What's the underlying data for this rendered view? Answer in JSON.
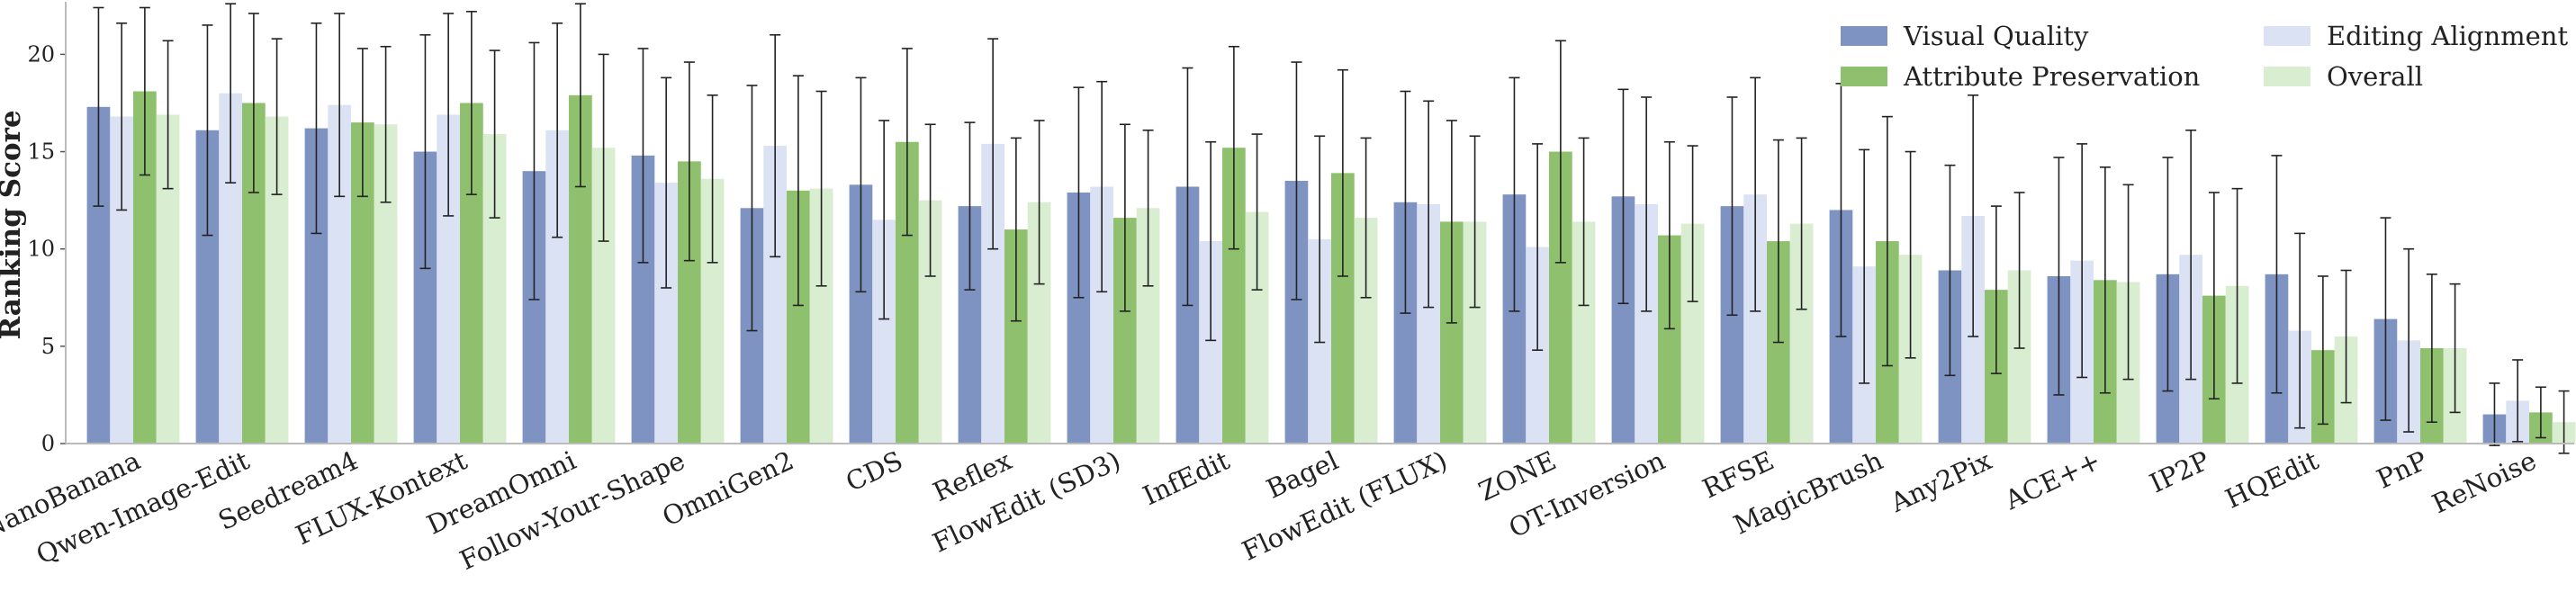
{
  "chart_data": {
    "type": "bar",
    "y_label": "Ranking Score",
    "categories": [
      "NanoBanana",
      "Qwen-Image-Edit",
      "Seedream4",
      "FLUX-Kontext",
      "DreamOmni",
      "Follow-Your-Shape",
      "OmniGen2",
      "CDS",
      "Reflex",
      "FlowEdit (SD3)",
      "InfEdit",
      "Bagel",
      "FlowEdit (FLUX)",
      "ZONE",
      "OT-Inversion",
      "RFSE",
      "MagicBrush",
      "Any2Pix",
      "ACE++",
      "IP2P",
      "HQEdit",
      "PnP",
      "ReNoise"
    ],
    "series": [
      {
        "name": "Visual Quality",
        "color": "#7f93c2",
        "values": [
          17.3,
          16.1,
          16.2,
          15.0,
          14.0,
          14.8,
          12.1,
          13.3,
          12.2,
          12.9,
          13.2,
          13.5,
          12.4,
          12.8,
          12.7,
          12.2,
          12.0,
          8.9,
          8.6,
          8.7,
          8.7,
          6.4,
          1.5
        ],
        "errors": [
          5.1,
          5.4,
          5.4,
          6.0,
          6.6,
          5.5,
          6.3,
          5.5,
          4.3,
          5.4,
          6.1,
          6.1,
          5.7,
          6.0,
          5.5,
          5.6,
          6.5,
          5.4,
          6.1,
          6.0,
          6.1,
          5.2,
          1.6
        ]
      },
      {
        "name": "Editing Alignment",
        "color": "#dae2f3",
        "values": [
          16.8,
          18.0,
          17.4,
          16.9,
          16.1,
          13.4,
          15.3,
          11.5,
          15.4,
          13.2,
          10.4,
          10.5,
          12.3,
          10.1,
          12.3,
          12.8,
          9.1,
          11.7,
          9.4,
          9.7,
          5.8,
          5.3,
          2.2
        ],
        "errors": [
          4.8,
          4.6,
          4.7,
          5.2,
          5.5,
          5.4,
          5.7,
          5.1,
          5.4,
          5.4,
          5.1,
          5.3,
          5.3,
          5.3,
          5.5,
          6.0,
          6.0,
          6.2,
          6.0,
          6.4,
          5.0,
          4.7,
          2.1
        ]
      },
      {
        "name": "Attribute Preservation",
        "color": "#8fc06e",
        "values": [
          18.1,
          17.5,
          16.5,
          17.5,
          17.9,
          14.5,
          13.0,
          15.5,
          11.0,
          11.6,
          15.2,
          13.9,
          11.4,
          15.0,
          10.7,
          10.4,
          10.4,
          7.9,
          8.4,
          7.6,
          4.8,
          4.9,
          1.6
        ],
        "errors": [
          4.3,
          4.6,
          3.8,
          4.7,
          4.7,
          5.1,
          5.9,
          4.8,
          4.7,
          4.8,
          5.2,
          5.3,
          5.2,
          5.7,
          4.8,
          5.2,
          6.4,
          4.3,
          5.8,
          5.3,
          3.8,
          3.8,
          1.3
        ]
      },
      {
        "name": "Overall",
        "color": "#d9edd0",
        "values": [
          16.9,
          16.8,
          16.4,
          15.9,
          15.2,
          13.6,
          13.1,
          12.5,
          12.4,
          12.1,
          11.9,
          11.6,
          11.4,
          11.4,
          11.3,
          11.3,
          9.7,
          8.9,
          8.3,
          8.1,
          5.5,
          4.9,
          1.1
        ],
        "errors": [
          3.8,
          4.0,
          4.0,
          4.3,
          4.8,
          4.3,
          5.0,
          3.9,
          4.2,
          4.0,
          4.0,
          4.1,
          4.4,
          4.3,
          4.0,
          4.4,
          5.3,
          4.0,
          5.0,
          5.0,
          3.4,
          3.3,
          1.6
        ]
      }
    ],
    "ylim": [
      0,
      22.7
    ],
    "yticks": [
      0,
      5,
      10,
      15,
      20
    ],
    "legend": "upper right",
    "legend_columns": 2
  }
}
